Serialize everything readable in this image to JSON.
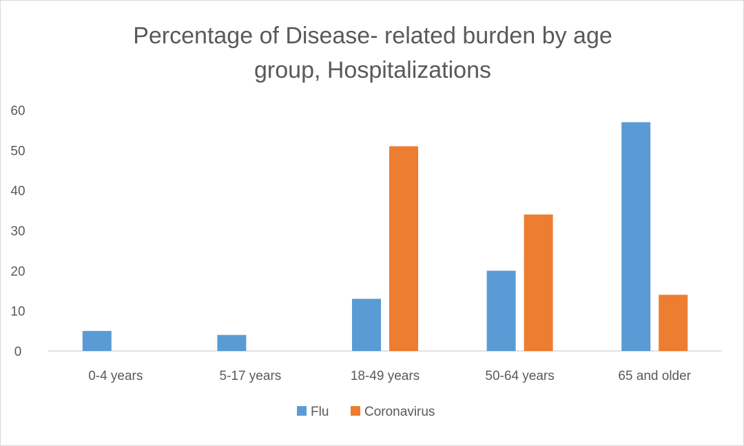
{
  "chart_data": {
    "type": "bar",
    "title_lines": [
      "Percentage of Disease- related burden by age",
      "group, Hospitalizations"
    ],
    "categories": [
      "0-4 years",
      "5-17 years",
      "18-49 years",
      "50-64 years",
      "65 and older"
    ],
    "series": [
      {
        "name": "Flu",
        "color": "#5b9bd5",
        "values": [
          5,
          4,
          13,
          20,
          57
        ]
      },
      {
        "name": "Coronavirus",
        "color": "#ed7d31",
        "values": [
          0,
          0,
          51,
          34,
          14
        ]
      }
    ],
    "ylim": [
      0,
      60
    ],
    "yticks": [
      0,
      10,
      20,
      30,
      40,
      50,
      60
    ],
    "grid": false,
    "legend": "bottom"
  }
}
